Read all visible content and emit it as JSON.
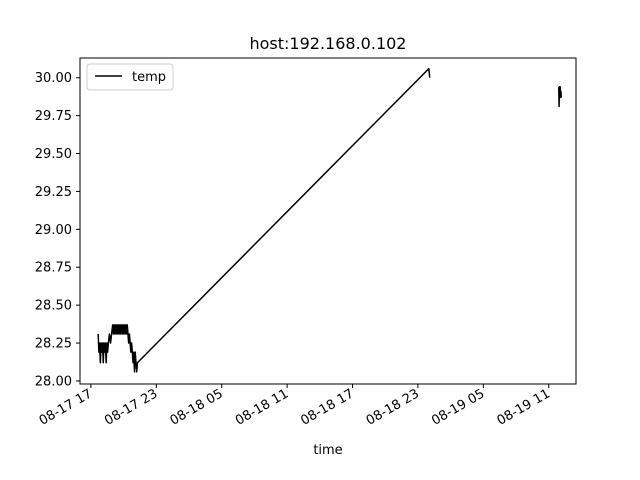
{
  "chart_data": {
    "type": "line",
    "title": "host:192.168.0.102",
    "xlabel": "time",
    "ylabel": "",
    "x_axis_type": "datetime",
    "xlim": [
      "2016-08-17T16:00:00",
      "2016-08-19T13:30:00"
    ],
    "ylim": [
      27.98,
      30.13
    ],
    "x_ticks": [
      {
        "t": "2016-08-17T17:00:00",
        "label": "08-17 17"
      },
      {
        "t": "2016-08-17T23:00:00",
        "label": "08-17 23"
      },
      {
        "t": "2016-08-18T05:00:00",
        "label": "08-18 05"
      },
      {
        "t": "2016-08-18T11:00:00",
        "label": "08-18 11"
      },
      {
        "t": "2016-08-18T17:00:00",
        "label": "08-18 17"
      },
      {
        "t": "2016-08-18T23:00:00",
        "label": "08-18 23"
      },
      {
        "t": "2016-08-19T05:00:00",
        "label": "08-19 05"
      },
      {
        "t": "2016-08-19T11:00:00",
        "label": "08-19 11"
      }
    ],
    "y_ticks": [
      {
        "v": 28.0,
        "label": "28.00"
      },
      {
        "v": 28.25,
        "label": "28.25"
      },
      {
        "v": 28.5,
        "label": "28.50"
      },
      {
        "v": 28.75,
        "label": "28.75"
      },
      {
        "v": 29.0,
        "label": "29.00"
      },
      {
        "v": 29.25,
        "label": "29.25"
      },
      {
        "v": 29.5,
        "label": "29.50"
      },
      {
        "v": 29.75,
        "label": "29.75"
      },
      {
        "v": 30.0,
        "label": "30.00"
      }
    ],
    "grid": false,
    "legend_position": "top-left",
    "series": [
      {
        "name": "temp",
        "color": "#000000",
        "points": [
          [
            "2016-08-17T17:40:00",
            28.31
          ],
          [
            "2016-08-17T17:44:00",
            28.19
          ],
          [
            "2016-08-17T17:48:00",
            28.25
          ],
          [
            "2016-08-17T17:52:00",
            28.12
          ],
          [
            "2016-08-17T17:56:00",
            28.25
          ],
          [
            "2016-08-17T18:00:00",
            28.19
          ],
          [
            "2016-08-17T18:04:00",
            28.25
          ],
          [
            "2016-08-17T18:08:00",
            28.12
          ],
          [
            "2016-08-17T18:12:00",
            28.25
          ],
          [
            "2016-08-17T18:16:00",
            28.19
          ],
          [
            "2016-08-17T18:20:00",
            28.25
          ],
          [
            "2016-08-17T18:24:00",
            28.12
          ],
          [
            "2016-08-17T18:28:00",
            28.25
          ],
          [
            "2016-08-17T18:32:00",
            28.19
          ],
          [
            "2016-08-17T18:36:00",
            28.25
          ],
          [
            "2016-08-17T18:42:00",
            28.31
          ],
          [
            "2016-08-17T18:48:00",
            28.25
          ],
          [
            "2016-08-17T18:54:00",
            28.31
          ],
          [
            "2016-08-17T19:00:00",
            28.37
          ],
          [
            "2016-08-17T19:04:00",
            28.31
          ],
          [
            "2016-08-17T19:08:00",
            28.37
          ],
          [
            "2016-08-17T19:12:00",
            28.31
          ],
          [
            "2016-08-17T19:16:00",
            28.37
          ],
          [
            "2016-08-17T19:20:00",
            28.31
          ],
          [
            "2016-08-17T19:24:00",
            28.37
          ],
          [
            "2016-08-17T19:28:00",
            28.31
          ],
          [
            "2016-08-17T19:32:00",
            28.37
          ],
          [
            "2016-08-17T19:36:00",
            28.31
          ],
          [
            "2016-08-17T19:40:00",
            28.37
          ],
          [
            "2016-08-17T19:44:00",
            28.31
          ],
          [
            "2016-08-17T19:48:00",
            28.37
          ],
          [
            "2016-08-17T19:52:00",
            28.31
          ],
          [
            "2016-08-17T19:56:00",
            28.37
          ],
          [
            "2016-08-17T20:00:00",
            28.31
          ],
          [
            "2016-08-17T20:04:00",
            28.37
          ],
          [
            "2016-08-17T20:08:00",
            28.31
          ],
          [
            "2016-08-17T20:12:00",
            28.37
          ],
          [
            "2016-08-17T20:16:00",
            28.31
          ],
          [
            "2016-08-17T20:20:00",
            28.37
          ],
          [
            "2016-08-17T20:24:00",
            28.31
          ],
          [
            "2016-08-17T20:28:00",
            28.25
          ],
          [
            "2016-08-17T20:32:00",
            28.31
          ],
          [
            "2016-08-17T20:36:00",
            28.25
          ],
          [
            "2016-08-17T20:40:00",
            28.19
          ],
          [
            "2016-08-17T20:44:00",
            28.25
          ],
          [
            "2016-08-17T20:48:00",
            28.19
          ],
          [
            "2016-08-17T20:52:00",
            28.12
          ],
          [
            "2016-08-17T20:56:00",
            28.19
          ],
          [
            "2016-08-17T21:00:00",
            28.06
          ],
          [
            "2016-08-17T21:04:00",
            28.19
          ],
          [
            "2016-08-17T21:08:00",
            28.12
          ],
          [
            "2016-08-17T21:12:00",
            28.06
          ],
          [
            "2016-08-17T21:16:00",
            28.12
          ],
          [
            "2016-08-19T00:00:00",
            30.06
          ],
          [
            "2016-08-19T00:05:00",
            30.0
          ]
        ]
      },
      {
        "name": "",
        "color": "#000000",
        "points": [
          [
            "2016-08-19T11:55:00",
            29.94
          ],
          [
            "2016-08-19T11:57:00",
            29.81
          ],
          [
            "2016-08-19T11:59:00",
            29.94
          ],
          [
            "2016-08-19T12:01:00",
            29.87
          ],
          [
            "2016-08-19T12:03:00",
            29.94
          ],
          [
            "2016-08-19T12:05:00",
            29.87
          ],
          [
            "2016-08-19T12:07:00",
            29.91
          ],
          [
            "2016-08-19T12:09:00",
            29.87
          ]
        ]
      }
    ]
  },
  "legend": {
    "entries": [
      {
        "label": "temp",
        "color": "#000000"
      }
    ]
  }
}
